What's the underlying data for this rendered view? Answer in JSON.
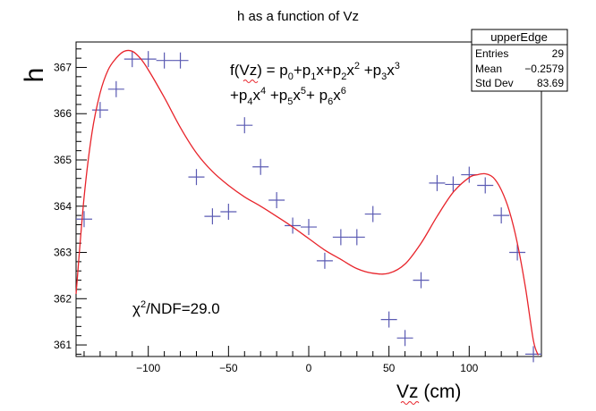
{
  "chart_data": {
    "type": "scatter",
    "title": "h as a function of Vz",
    "xlabel": "Vz (cm)",
    "ylabel": "h",
    "xlim": [
      -145,
      145
    ],
    "ylim": [
      360.75,
      367.55
    ],
    "x_ticks": [
      -100,
      -50,
      0,
      50,
      100
    ],
    "y_ticks": [
      361,
      362,
      363,
      364,
      365,
      366,
      367
    ],
    "points": [
      {
        "x": -140,
        "y": 363.72
      },
      {
        "x": -130,
        "y": 366.08
      },
      {
        "x": -120,
        "y": 366.53
      },
      {
        "x": -110,
        "y": 367.18
      },
      {
        "x": -100,
        "y": 367.18
      },
      {
        "x": -90,
        "y": 367.15
      },
      {
        "x": -80,
        "y": 367.15
      },
      {
        "x": -70,
        "y": 364.63
      },
      {
        "x": -60,
        "y": 363.78
      },
      {
        "x": -50,
        "y": 363.88
      },
      {
        "x": -40,
        "y": 365.75
      },
      {
        "x": -30,
        "y": 364.85
      },
      {
        "x": -20,
        "y": 364.13
      },
      {
        "x": -10,
        "y": 363.58
      },
      {
        "x": 0,
        "y": 363.55
      },
      {
        "x": 10,
        "y": 362.82
      },
      {
        "x": 20,
        "y": 363.33
      },
      {
        "x": 30,
        "y": 363.33
      },
      {
        "x": 40,
        "y": 363.83
      },
      {
        "x": 50,
        "y": 361.55
      },
      {
        "x": 60,
        "y": 361.15
      },
      {
        "x": 70,
        "y": 362.4
      },
      {
        "x": 80,
        "y": 364.5
      },
      {
        "x": 90,
        "y": 364.47
      },
      {
        "x": 100,
        "y": 364.68
      },
      {
        "x": 110,
        "y": 364.45
      },
      {
        "x": 120,
        "y": 363.8
      },
      {
        "x": 130,
        "y": 363.0
      },
      {
        "x": 140,
        "y": 360.8
      }
    ],
    "fit_curve": [
      [
        -145,
        362.1
      ],
      [
        -140,
        364.2
      ],
      [
        -135,
        365.6
      ],
      [
        -130,
        366.45
      ],
      [
        -125,
        366.95
      ],
      [
        -120,
        367.2
      ],
      [
        -115,
        367.35
      ],
      [
        -110,
        367.35
      ],
      [
        -105,
        367.2
      ],
      [
        -100,
        366.95
      ],
      [
        -90,
        366.35
      ],
      [
        -80,
        365.7
      ],
      [
        -70,
        365.15
      ],
      [
        -60,
        364.75
      ],
      [
        -50,
        364.45
      ],
      [
        -40,
        364.2
      ],
      [
        -30,
        364.0
      ],
      [
        -20,
        363.78
      ],
      [
        -10,
        363.55
      ],
      [
        0,
        363.3
      ],
      [
        10,
        363.05
      ],
      [
        20,
        362.85
      ],
      [
        30,
        362.65
      ],
      [
        40,
        362.55
      ],
      [
        50,
        362.55
      ],
      [
        60,
        362.75
      ],
      [
        70,
        363.2
      ],
      [
        80,
        363.78
      ],
      [
        90,
        364.3
      ],
      [
        100,
        364.62
      ],
      [
        105,
        364.68
      ],
      [
        110,
        364.7
      ],
      [
        115,
        364.62
      ],
      [
        120,
        364.35
      ],
      [
        125,
        363.9
      ],
      [
        130,
        363.2
      ],
      [
        135,
        362.25
      ],
      [
        140,
        361.1
      ],
      [
        143,
        360.78
      ]
    ],
    "fit_formula": {
      "line1": "f(Vz) = p0+p1x+p2x2 +p3x3",
      "line2": "+p4x4 +p5x5+ p6x6"
    },
    "chi_label": "χ2/NDF=29.0",
    "stats_box": {
      "title": "upperEdge",
      "rows": [
        {
          "label": "Entries",
          "value": "29"
        },
        {
          "label": "Mean",
          "value": "−0.2579"
        },
        {
          "label": "Std Dev",
          "value": "83.69"
        }
      ]
    },
    "colors": {
      "markers": "#5b5bb3",
      "fit": "#e8242b"
    }
  }
}
